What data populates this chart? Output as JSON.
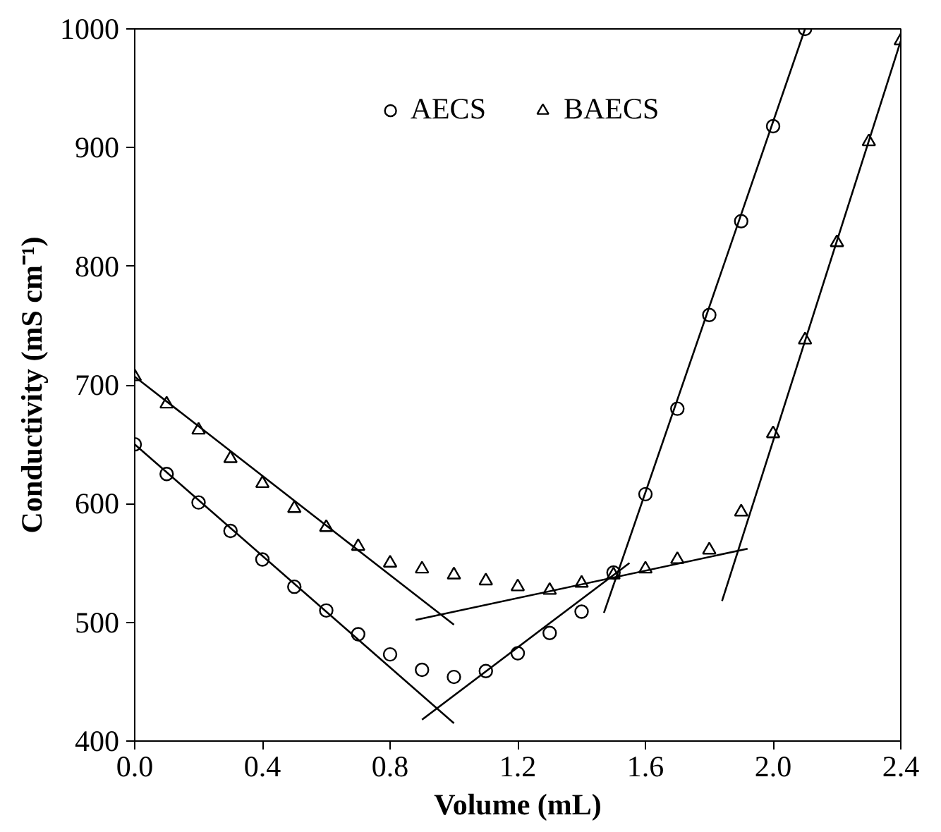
{
  "chart_data": {
    "type": "scatter",
    "xlabel": "Volume (mL)",
    "ylabel": "Conductivity (mS cm⁻¹)",
    "xlim": [
      0,
      2.4
    ],
    "ylim": [
      400,
      1000
    ],
    "xticks": [
      {
        "value": 0,
        "label": "0.0"
      },
      0.4,
      0.8,
      1.2,
      1.6,
      {
        "value": 2,
        "label": "2.0"
      },
      2.4
    ],
    "yticks": [
      400,
      500,
      600,
      700,
      800,
      900,
      1000
    ],
    "grid": false,
    "legend": "top",
    "series": [
      {
        "name": "AECS",
        "color": "#000000",
        "marker": "circle",
        "x": [
          0,
          0.1,
          0.2,
          0.3,
          0.4,
          0.5,
          0.6,
          0.7,
          0.8,
          0.9,
          1.0,
          1.1,
          1.2,
          1.3,
          1.4,
          1.5,
          1.6,
          1.7,
          1.8,
          1.9,
          2.0,
          2.1
        ],
        "values": [
          650,
          625,
          601,
          577,
          553,
          530,
          510,
          490,
          473,
          460,
          454,
          459,
          474,
          491,
          509,
          542,
          608,
          680,
          759,
          838,
          918,
          1000
        ]
      },
      {
        "name": "BAECS",
        "color": "#000000",
        "marker": "triangle",
        "x": [
          0,
          0.1,
          0.2,
          0.3,
          0.4,
          0.5,
          0.6,
          0.7,
          0.8,
          0.9,
          1.0,
          1.1,
          1.2,
          1.3,
          1.4,
          1.5,
          1.6,
          1.7,
          1.8,
          1.9,
          2.0,
          2.1,
          2.2,
          2.3,
          2.4
        ],
        "values": [
          707,
          684,
          662,
          638,
          617,
          596,
          580,
          564,
          550,
          545,
          540,
          535,
          530,
          527,
          533,
          540,
          545,
          553,
          561,
          593,
          659,
          738,
          820,
          905,
          990
        ]
      },
      {
        "type": "line",
        "color": "#000000",
        "x": [
          0,
          1.0
        ],
        "values": [
          650,
          415
        ]
      },
      {
        "type": "line",
        "color": "#000000",
        "x": [
          0.9,
          1.55
        ],
        "values": [
          418,
          550
        ]
      },
      {
        "type": "line",
        "color": "#000000",
        "x": [
          1.47,
          2.1
        ],
        "values": [
          508,
          1000
        ]
      },
      {
        "type": "line",
        "color": "#000000",
        "x": [
          0,
          1.0
        ],
        "values": [
          707,
          498
        ]
      },
      {
        "type": "line",
        "color": "#000000",
        "x": [
          0.88,
          1.92
        ],
        "values": [
          502,
          562
        ]
      },
      {
        "type": "line",
        "color": "#000000",
        "x": [
          1.84,
          2.4
        ],
        "values": [
          518,
          990
        ]
      }
    ]
  }
}
